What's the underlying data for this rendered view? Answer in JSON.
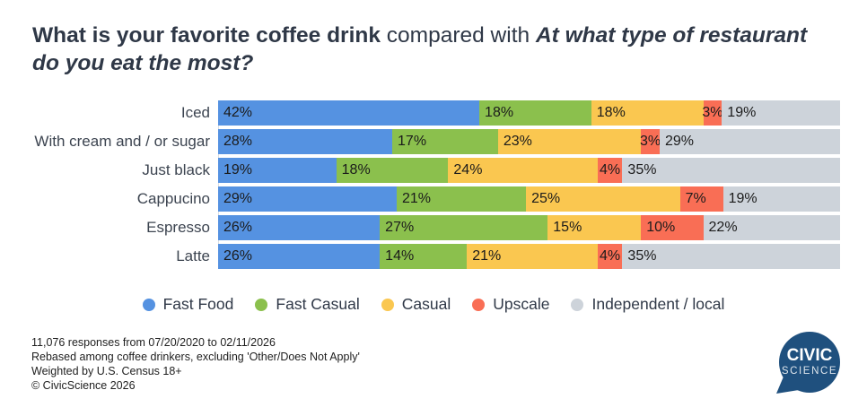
{
  "title": {
    "part1": "What is your favorite coffee drink",
    "part2": " compared with ",
    "part3": "At what type of restaurant do you eat the most?"
  },
  "chart_data": {
    "type": "bar",
    "orientation": "horizontal",
    "stacked": true,
    "categories": [
      "Iced",
      "With cream and / or sugar",
      "Just black",
      "Cappucino",
      "Espresso",
      "Latte"
    ],
    "series": [
      {
        "name": "Fast Food",
        "color": "#5592E1",
        "values": [
          42,
          28,
          19,
          29,
          26,
          26
        ]
      },
      {
        "name": "Fast Casual",
        "color": "#8BC04D",
        "values": [
          18,
          17,
          18,
          21,
          27,
          14
        ]
      },
      {
        "name": "Casual",
        "color": "#FAC750",
        "values": [
          18,
          23,
          24,
          25,
          15,
          21
        ]
      },
      {
        "name": "Upscale",
        "color": "#F96E55",
        "values": [
          3,
          3,
          4,
          7,
          10,
          4
        ]
      },
      {
        "name": "Independent / local",
        "color": "#CDD3DA",
        "values": [
          19,
          29,
          35,
          19,
          22,
          35
        ]
      }
    ],
    "value_suffix": "%",
    "xlim": [
      0,
      100
    ],
    "grid": false,
    "legend_position": "bottom"
  },
  "footer": {
    "lines": [
      "11,076 responses from 07/20/2020 to 02/11/2026",
      "Rebased among coffee drinkers, excluding 'Other/Does Not Apply'",
      "Weighted by U.S. Census 18+",
      "© CivicScience 2026"
    ]
  },
  "logo": {
    "line1": "CIVIC",
    "line2": "SCIENCE",
    "color": "#1F507E"
  }
}
